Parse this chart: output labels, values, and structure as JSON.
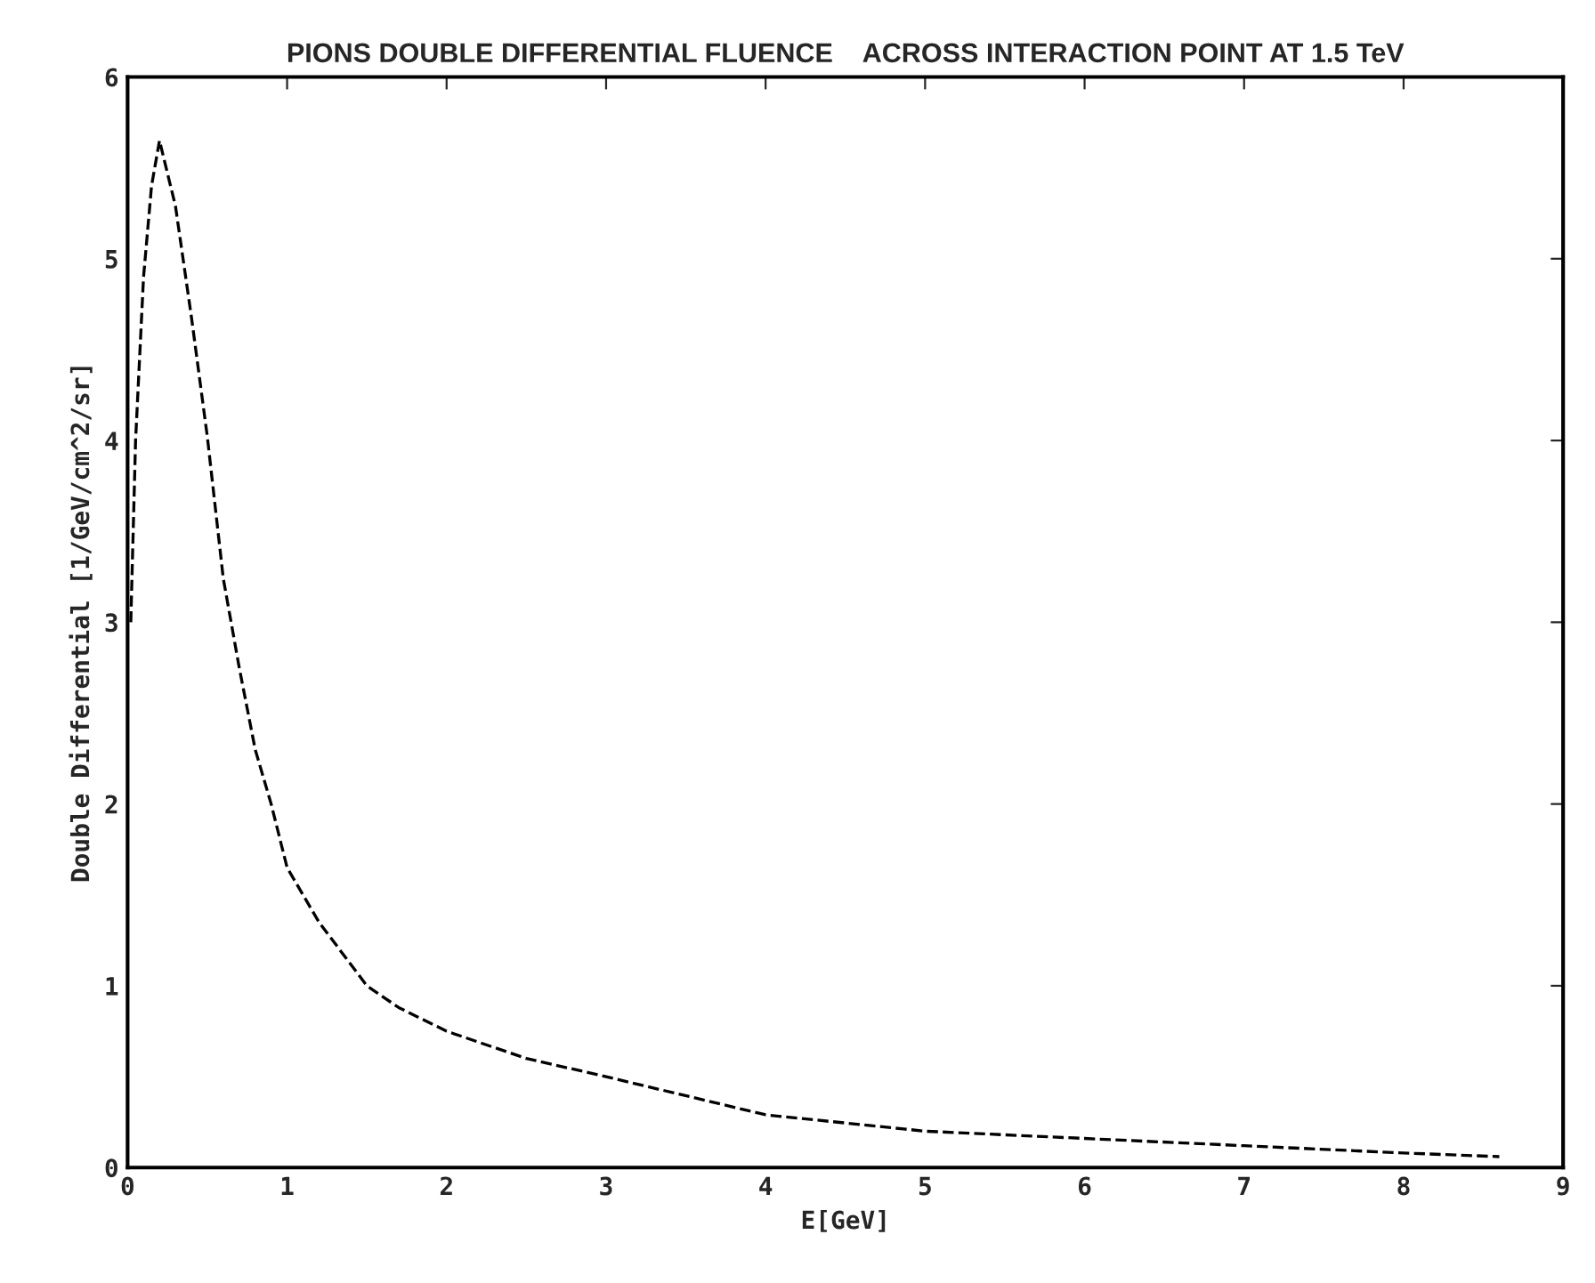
{
  "chart_data": {
    "type": "line",
    "title": "PIONS DOUBLE DIFFERENTIAL FLUENCE    ACROSS INTERACTION POINT AT 1.5 TeV",
    "xlabel": "E[GeV]",
    "ylabel": "Double Differential [1/GeV/cm^2/sr]",
    "series": [
      {
        "color": "#000000",
        "x": [
          0.02,
          0.05,
          0.1,
          0.15,
          0.2,
          0.3,
          0.4,
          0.5,
          0.6,
          0.7,
          0.8,
          0.9,
          1.0,
          1.2,
          1.5,
          1.7,
          2.0,
          2.5,
          3.0,
          4.0,
          5.0,
          6.0,
          7.0,
          8.0,
          8.6
        ],
        "values": [
          3.0,
          4.0,
          4.9,
          5.4,
          5.65,
          5.29,
          4.68,
          4.02,
          3.24,
          2.75,
          2.3,
          2.0,
          1.65,
          1.35,
          1.0,
          0.88,
          0.75,
          0.6,
          0.5,
          0.29,
          0.2,
          0.16,
          0.12,
          0.08,
          0.06
        ]
      }
    ],
    "xlim": [
      0,
      9
    ],
    "ylim": [
      0,
      6
    ],
    "xticks": [
      0,
      1,
      2,
      3,
      4,
      5,
      6,
      7,
      8,
      9
    ],
    "yticks": [
      0,
      1,
      2,
      3,
      4,
      5,
      6
    ],
    "line_style": "dashed",
    "marker": "none",
    "grid": false,
    "legend": false
  }
}
